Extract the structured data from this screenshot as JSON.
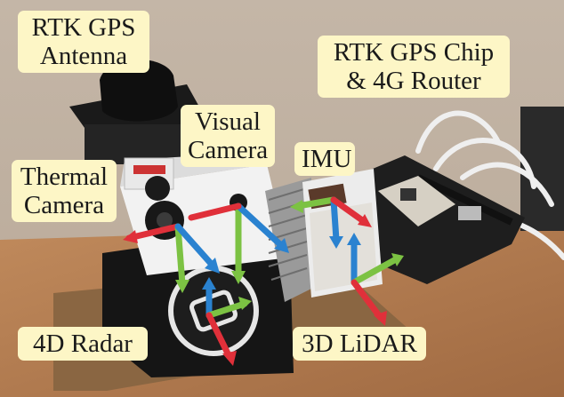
{
  "labels": {
    "rtk_antenna": {
      "line1": "RTK GPS",
      "line2": "Antenna"
    },
    "rtk_chip": {
      "line1": "RTK GPS Chip",
      "line2": "& 4G Router"
    },
    "visual_camera": {
      "line1": "Visual",
      "line2": "Camera"
    },
    "imu": {
      "line1": "IMU"
    },
    "thermal_camera": {
      "line1": "Thermal",
      "line2": "Camera"
    },
    "radar": {
      "line1": "4D Radar"
    },
    "lidar": {
      "line1": "3D LiDAR"
    }
  },
  "axis_colors": {
    "x": "#e0303a",
    "y": "#7cc243",
    "z": "#2a82d0"
  },
  "colors": {
    "label_bg": "#fdf6c6",
    "wall": "#c9b8a6",
    "table": "#b57f55"
  }
}
